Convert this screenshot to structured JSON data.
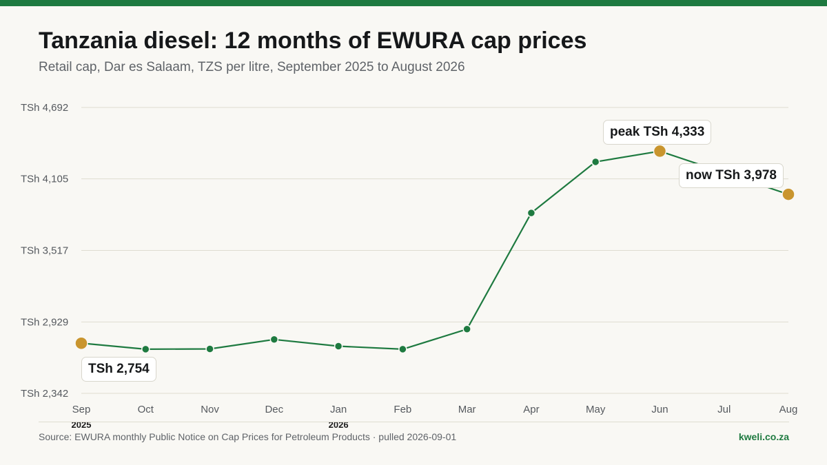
{
  "header": {
    "title": "Tanzania diesel: 12 months of EWURA cap prices",
    "subtitle": "Retail cap, Dar es Salaam, TZS per litre, September 2025 to August 2026"
  },
  "chart_data": {
    "type": "line",
    "title": "Tanzania diesel: 12 months of EWURA cap prices",
    "subtitle": "Retail cap, Dar es Salaam, TZS per litre, September 2025 to August 2026",
    "categories": [
      "Sep",
      "Oct",
      "Nov",
      "Dec",
      "Jan",
      "Feb",
      "Mar",
      "Apr",
      "May",
      "Jun",
      "Jul",
      "Aug"
    ],
    "year_labels": [
      {
        "index": 0,
        "label": "2025"
      },
      {
        "index": 4,
        "label": "2026"
      }
    ],
    "series": [
      {
        "values": [
          2754,
          2705,
          2707,
          2785,
          2730,
          2705,
          2870,
          3825,
          4245,
          4333,
          null,
          3978
        ],
        "color": "#1e7a40"
      }
    ],
    "y_ticks": [
      2342,
      2929,
      3517,
      4105,
      4692
    ],
    "y_tick_labels": [
      "TSh 2,342",
      "TSh 2,929",
      "TSh 3,517",
      "TSh 4,105",
      "TSh 4,692"
    ],
    "ylim": [
      2342,
      4692
    ],
    "grid": true,
    "highlight_color": "#c9952e",
    "annotations": [
      {
        "index": 0,
        "text": "TSh 2,754"
      },
      {
        "index": 9,
        "text": "peak TSh 4,333"
      },
      {
        "index": 11,
        "text": "now TSh 3,978"
      }
    ]
  },
  "footer": {
    "source": "Source: EWURA monthly Public Notice on Cap Prices for Petroleum Products · pulled 2026-09-01",
    "brand": "kweli.co.za"
  }
}
